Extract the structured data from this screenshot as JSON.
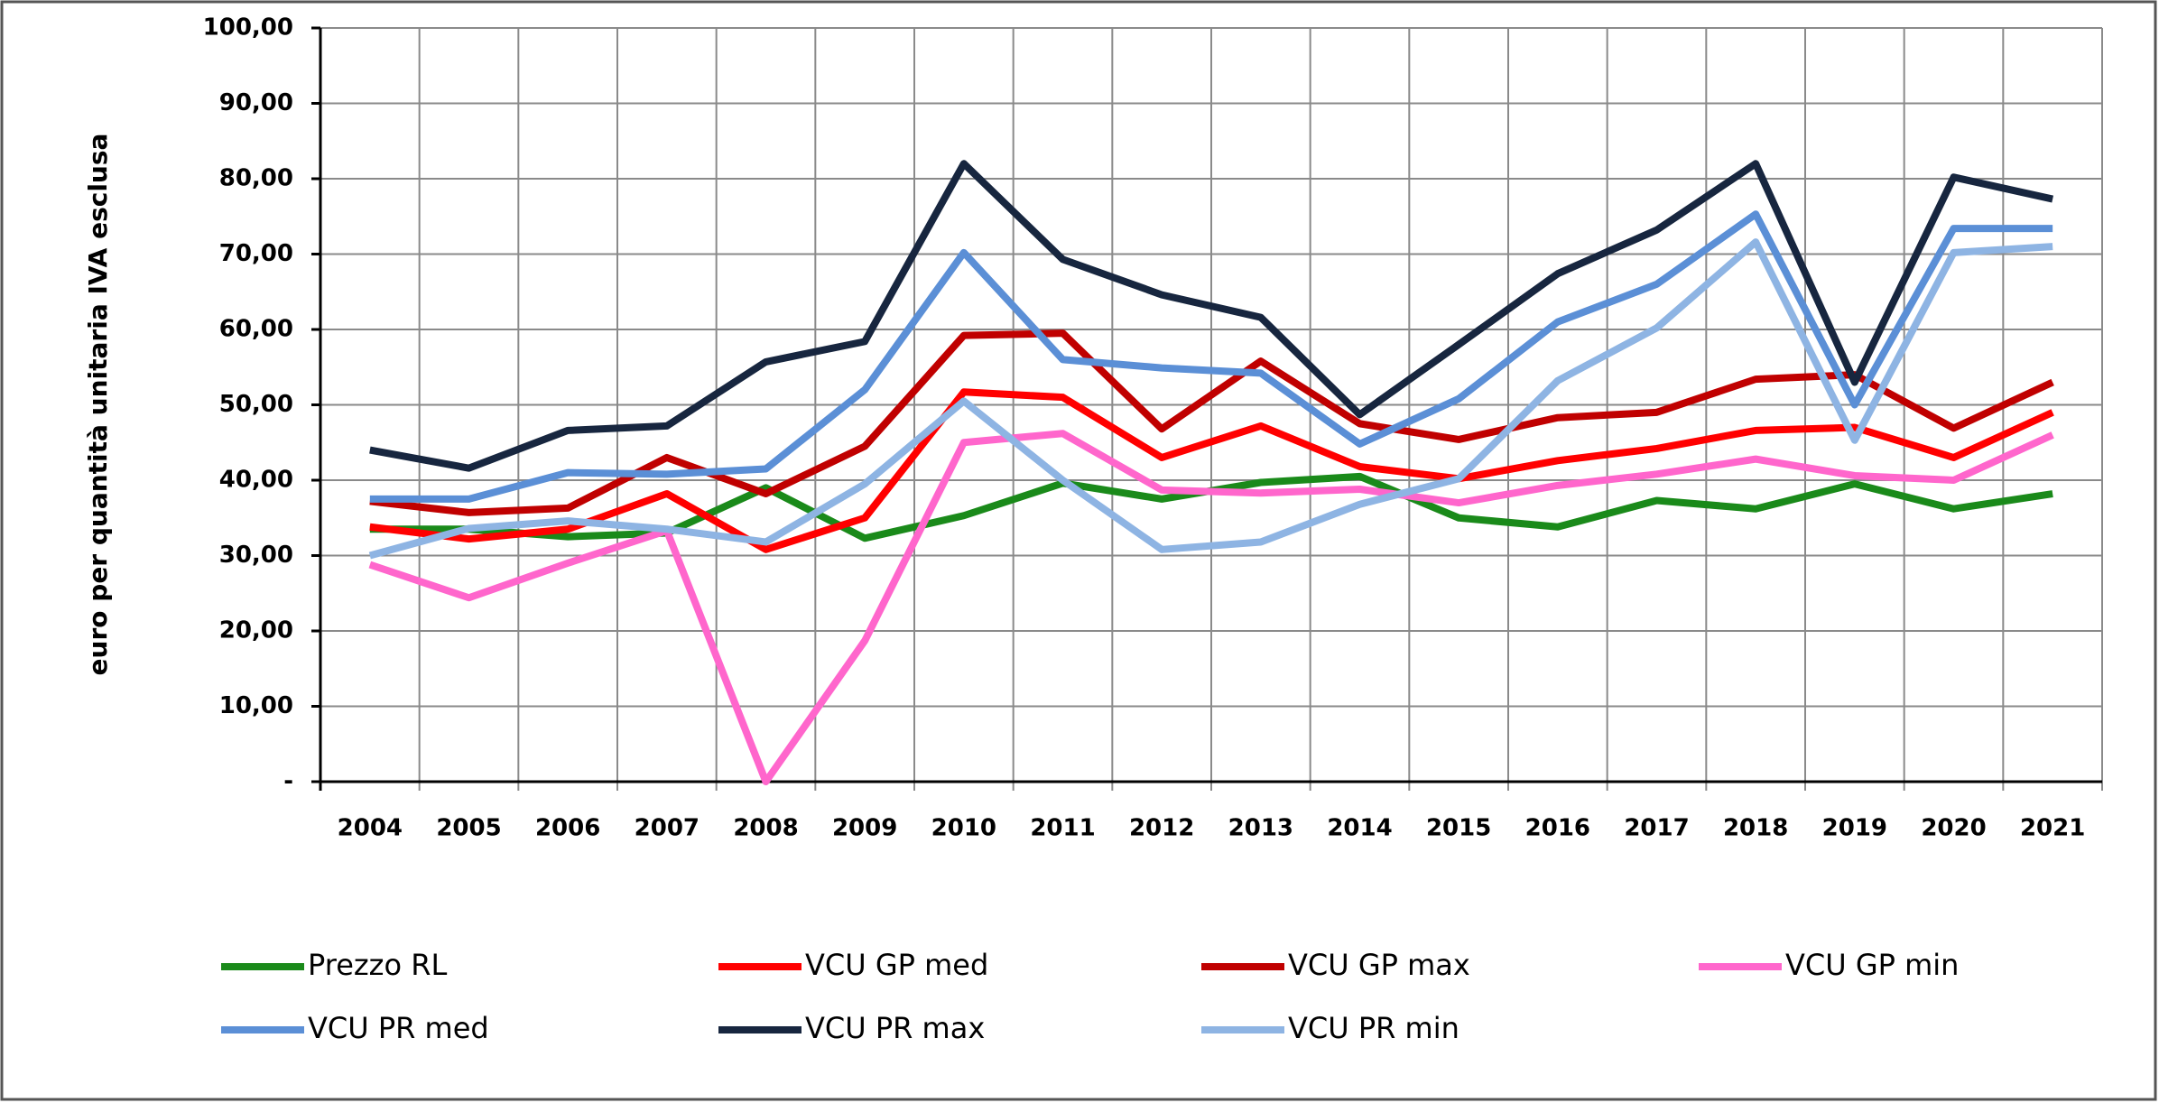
{
  "chart_data": {
    "type": "line",
    "y_label": "euro per quantità unitaria IVA esclusa",
    "categories": [
      "2004",
      "2005",
      "2006",
      "2007",
      "2008",
      "2009",
      "2010",
      "2011",
      "2012",
      "2013",
      "2014",
      "2015",
      "2016",
      "2017",
      "2018",
      "2019",
      "2020",
      "2021"
    ],
    "ylim": [
      0,
      100
    ],
    "yticks": [
      {
        "value": 0,
        "label": "-"
      },
      {
        "value": 10,
        "label": "10,00"
      },
      {
        "value": 20,
        "label": "20,00"
      },
      {
        "value": 30,
        "label": "30,00"
      },
      {
        "value": 40,
        "label": "40,00"
      },
      {
        "value": 50,
        "label": "50,00"
      },
      {
        "value": 60,
        "label": "60,00"
      },
      {
        "value": 70,
        "label": "70,00"
      },
      {
        "value": 80,
        "label": "80,00"
      },
      {
        "value": 90,
        "label": "90,00"
      },
      {
        "value": 100,
        "label": "100,00"
      }
    ],
    "grid": true,
    "legend": "bottom",
    "series": [
      {
        "name": "Prezzo RL",
        "color": "#1a8a1a",
        "values": [
          33.5,
          33.5,
          32.5,
          33,
          39,
          32.3,
          35.3,
          39.6,
          37.5,
          39.7,
          40.5,
          35,
          33.8,
          37.3,
          36.2,
          39.5,
          36.2,
          38.2
        ]
      },
      {
        "name": "VCU GP med",
        "color": "#ff0000",
        "values": [
          33.8,
          32.2,
          33.5,
          38.2,
          30.8,
          35,
          51.7,
          51,
          43,
          47.2,
          41.8,
          40.2,
          42.6,
          44.2,
          46.6,
          47,
          43,
          49
        ]
      },
      {
        "name": "VCU GP max",
        "color": "#c00000",
        "values": [
          37.2,
          35.7,
          36.3,
          43,
          38.2,
          44.5,
          59.2,
          59.5,
          46.8,
          55.8,
          47.5,
          45.4,
          48.3,
          49,
          53.4,
          54,
          46.9,
          53
        ]
      },
      {
        "name": "VCU GP min",
        "color": "#ff66cc",
        "values": [
          28.8,
          24.4,
          29,
          33.3,
          0,
          18.7,
          45,
          46.2,
          38.7,
          38.3,
          38.8,
          37,
          39.3,
          40.8,
          42.8,
          40.6,
          40,
          46
        ]
      },
      {
        "name": "VCU PR med",
        "color": "#5b8fd6",
        "values": [
          37.5,
          37.5,
          41,
          40.8,
          41.5,
          52,
          70.2,
          56,
          54.9,
          54.2,
          44.8,
          50.8,
          61,
          66,
          75.3,
          50,
          73.4,
          73.4
        ]
      },
      {
        "name": "VCU PR max",
        "color": "#17263f",
        "values": [
          44,
          41.6,
          46.6,
          47.2,
          55.7,
          58.4,
          82,
          69.3,
          64.6,
          61.6,
          48.7,
          58,
          67.4,
          73.2,
          82,
          53,
          80.2,
          77.3
        ]
      },
      {
        "name": "VCU PR min",
        "color": "#8eb4e3",
        "values": [
          30,
          33.6,
          34.6,
          33.5,
          31.8,
          39.5,
          50.5,
          40,
          30.8,
          31.8,
          36.8,
          40.2,
          53.2,
          60.2,
          71.6,
          45.3,
          70.2,
          71
        ]
      }
    ]
  }
}
